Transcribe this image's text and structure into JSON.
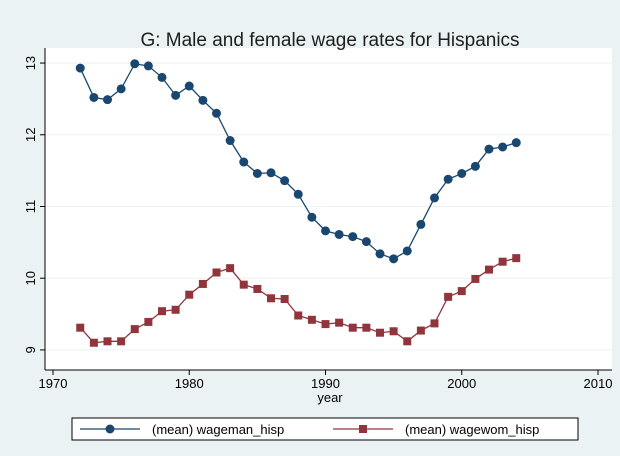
{
  "chart_data": {
    "type": "line",
    "title": "G: Male and female wage rates for Hispanics",
    "xlabel": "year",
    "x": [
      1972,
      1973,
      1974,
      1975,
      1976,
      1977,
      1978,
      1979,
      1980,
      1981,
      1982,
      1983,
      1984,
      1985,
      1986,
      1987,
      1988,
      1989,
      1990,
      1991,
      1992,
      1993,
      1994,
      1995,
      1996,
      1997,
      1998,
      1999,
      2000,
      2001,
      2002,
      2003,
      2004
    ],
    "series": [
      {
        "name": "(mean) wageman_hisp",
        "color": "#1a476f",
        "marker": "circle",
        "values": [
          12.93,
          12.52,
          12.49,
          12.64,
          12.99,
          12.96,
          12.8,
          12.55,
          12.68,
          12.48,
          12.3,
          11.92,
          11.62,
          11.46,
          11.47,
          11.36,
          11.17,
          10.85,
          10.66,
          10.61,
          10.58,
          10.51,
          10.34,
          10.27,
          10.38,
          10.75,
          11.12,
          11.38,
          11.46,
          11.56,
          11.8,
          11.83,
          11.89
        ]
      },
      {
        "name": "(mean) wagewom_hisp",
        "color": "#90353b",
        "marker": "square",
        "values": [
          9.31,
          9.1,
          9.12,
          9.12,
          9.29,
          9.39,
          9.54,
          9.56,
          9.77,
          9.92,
          10.08,
          10.14,
          9.91,
          9.85,
          9.72,
          9.71,
          9.48,
          9.42,
          9.36,
          9.38,
          9.31,
          9.31,
          9.24,
          9.26,
          9.12,
          9.27,
          9.37,
          9.74,
          9.82,
          9.99,
          10.12,
          10.23,
          10.28
        ]
      }
    ],
    "xlim": [
      1970,
      2010
    ],
    "xticks": [
      1970,
      1980,
      1990,
      2000,
      2010
    ],
    "ylim": [
      8.72,
      13.21
    ],
    "yticks": [
      9,
      10,
      11,
      12,
      13
    ],
    "grid": true,
    "legend": "bottom"
  }
}
